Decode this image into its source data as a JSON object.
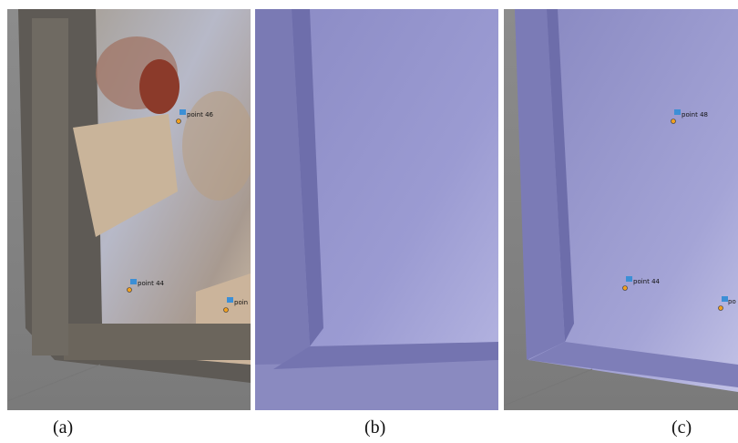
{
  "panels": [
    {
      "label": "(a)",
      "points": [
        "point 46",
        "point 44",
        "poin"
      ]
    },
    {
      "label": "(b)",
      "points": []
    },
    {
      "label": "(c)",
      "points": [
        "point 48",
        "point 44",
        "po"
      ]
    }
  ]
}
